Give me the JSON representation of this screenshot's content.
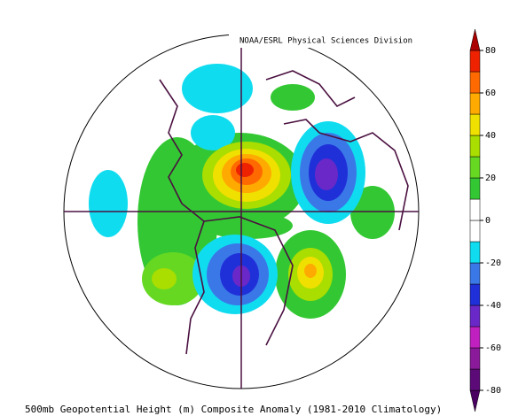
{
  "header": {
    "title": "NOAA/ESRL Physical Sciences Division"
  },
  "caption": "500mb Geopotential Height (m) Composite Anomaly (1981-2010 Climatology)",
  "colorbar": {
    "lim": [
      -90,
      90
    ],
    "ticks": [
      80,
      60,
      40,
      20,
      0,
      -20,
      -40,
      -60,
      -80
    ],
    "colors": [
      "#4a0060",
      "#5c0a78",
      "#8b1a9a",
      "#c020c0",
      "#6a28c8",
      "#2030d8",
      "#3a78e8",
      "#10dcf0",
      "#ffffff",
      "#ffffff",
      "#33c833",
      "#66d822",
      "#aadd00",
      "#f0e000",
      "#ffaa00",
      "#ff6a00",
      "#ee2200",
      "#aa0000"
    ]
  }
}
